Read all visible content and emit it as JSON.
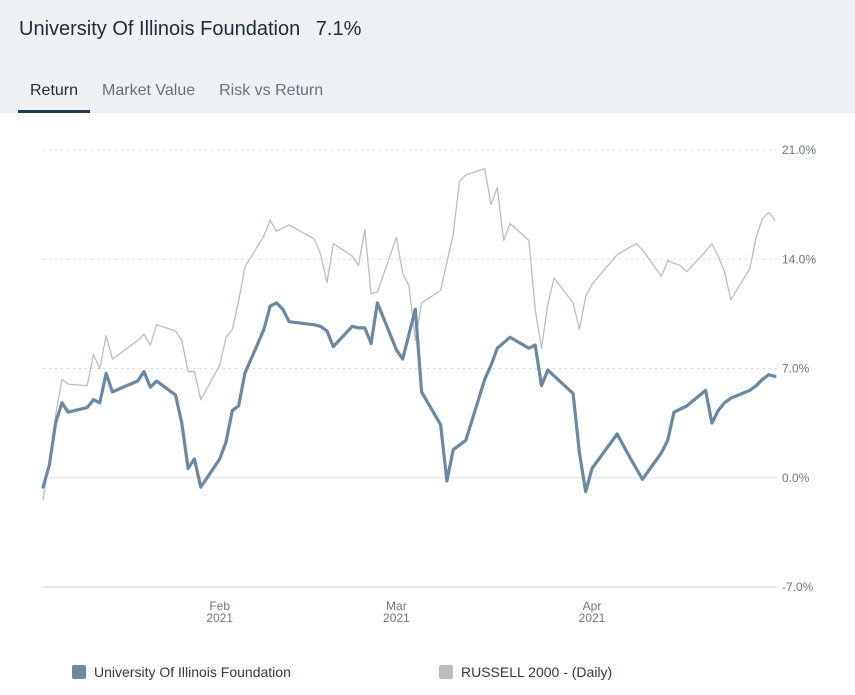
{
  "header": {
    "title": "University Of Illinois Foundation",
    "value": "7.1%"
  },
  "tabs": [
    {
      "label": "Return",
      "active": true
    },
    {
      "label": "Market Value",
      "active": false
    },
    {
      "label": "Risk vs Return",
      "active": false
    }
  ],
  "colors": {
    "fund": "#6c87a0",
    "benchmark": "#b9bec3",
    "grid": "#d3d7db",
    "header_bg": "#eef1f4"
  },
  "legend": [
    {
      "label": "University Of Illinois Foundation",
      "color": "#6c87a0"
    },
    {
      "label": "RUSSELL 2000 - (Daily)",
      "color": "#b9bec3"
    }
  ],
  "chart_data": {
    "type": "line",
    "ylim": [
      -7.0,
      21.0
    ],
    "y_ticks": [
      "21.0%",
      "14.0%",
      "7.0%",
      "0.0%",
      "-7.0%"
    ],
    "y_tick_values": [
      21.0,
      14.0,
      7.0,
      0.0,
      -7.0
    ],
    "x_range": [
      "2021-01-04",
      "2021-04-30"
    ],
    "x_ticks": [
      {
        "date": "2021-02-01",
        "month": "Feb",
        "year": "2021"
      },
      {
        "date": "2021-03-01",
        "month": "Mar",
        "year": "2021"
      },
      {
        "date": "2021-04-01",
        "month": "Apr",
        "year": "2021"
      }
    ],
    "grid": "horizontal dashed",
    "legend_position": "bottom",
    "series": [
      {
        "name": "University Of Illinois Foundation",
        "values": [
          [
            "2021-01-04",
            -0.6
          ],
          [
            "2021-01-05",
            0.8
          ],
          [
            "2021-01-06",
            3.5
          ],
          [
            "2021-01-07",
            4.8
          ],
          [
            "2021-01-08",
            4.2
          ],
          [
            "2021-01-11",
            4.5
          ],
          [
            "2021-01-12",
            5.0
          ],
          [
            "2021-01-13",
            4.8
          ],
          [
            "2021-01-14",
            6.7
          ],
          [
            "2021-01-15",
            5.5
          ],
          [
            "2021-01-19",
            6.2
          ],
          [
            "2021-01-20",
            6.8
          ],
          [
            "2021-01-21",
            5.8
          ],
          [
            "2021-01-22",
            6.2
          ],
          [
            "2021-01-25",
            5.3
          ],
          [
            "2021-01-26",
            3.5
          ],
          [
            "2021-01-27",
            0.6
          ],
          [
            "2021-01-28",
            1.2
          ],
          [
            "2021-01-29",
            -0.6
          ],
          [
            "2021-02-01",
            1.2
          ],
          [
            "2021-02-02",
            2.3
          ],
          [
            "2021-02-03",
            4.3
          ],
          [
            "2021-02-04",
            4.6
          ],
          [
            "2021-02-05",
            6.7
          ],
          [
            "2021-02-08",
            9.5
          ],
          [
            "2021-02-09",
            11.0
          ],
          [
            "2021-02-10",
            11.2
          ],
          [
            "2021-02-11",
            10.8
          ],
          [
            "2021-02-12",
            10.0
          ],
          [
            "2021-02-16",
            9.8
          ],
          [
            "2021-02-17",
            9.7
          ],
          [
            "2021-02-18",
            9.4
          ],
          [
            "2021-02-19",
            8.4
          ],
          [
            "2021-02-22",
            9.7
          ],
          [
            "2021-02-23",
            9.6
          ],
          [
            "2021-02-24",
            9.6
          ],
          [
            "2021-02-25",
            8.6
          ],
          [
            "2021-02-26",
            11.2
          ],
          [
            "2021-03-01",
            8.2
          ],
          [
            "2021-03-02",
            7.6
          ],
          [
            "2021-03-04",
            10.8
          ],
          [
            "2021-03-05",
            5.5
          ],
          [
            "2021-03-08",
            3.4
          ],
          [
            "2021-03-09",
            -0.2
          ],
          [
            "2021-03-10",
            1.8
          ],
          [
            "2021-03-12",
            2.4
          ],
          [
            "2021-03-15",
            6.3
          ],
          [
            "2021-03-16",
            7.2
          ],
          [
            "2021-03-17",
            8.3
          ],
          [
            "2021-03-19",
            9.0
          ],
          [
            "2021-03-22",
            8.3
          ],
          [
            "2021-03-23",
            8.5
          ],
          [
            "2021-03-24",
            5.9
          ],
          [
            "2021-03-25",
            6.9
          ],
          [
            "2021-03-29",
            5.4
          ],
          [
            "2021-03-30",
            1.6
          ],
          [
            "2021-03-31",
            -0.9
          ],
          [
            "2021-04-01",
            0.6
          ],
          [
            "2021-04-05",
            2.8
          ],
          [
            "2021-04-07",
            1.3
          ],
          [
            "2021-04-09",
            -0.1
          ],
          [
            "2021-04-12",
            1.6
          ],
          [
            "2021-04-13",
            2.4
          ],
          [
            "2021-04-14",
            4.2
          ],
          [
            "2021-04-16",
            4.6
          ],
          [
            "2021-04-19",
            5.6
          ],
          [
            "2021-04-20",
            3.5
          ],
          [
            "2021-04-21",
            4.3
          ],
          [
            "2021-04-22",
            4.8
          ],
          [
            "2021-04-23",
            5.1
          ],
          [
            "2021-04-26",
            5.6
          ],
          [
            "2021-04-27",
            5.9
          ],
          [
            "2021-04-28",
            6.3
          ],
          [
            "2021-04-29",
            6.6
          ],
          [
            "2021-04-30",
            6.5
          ]
        ]
      },
      {
        "name": "RUSSELL 2000 - (Daily)",
        "values": [
          [
            "2021-01-04",
            -1.4
          ],
          [
            "2021-01-05",
            1.0
          ],
          [
            "2021-01-06",
            4.0
          ],
          [
            "2021-01-07",
            6.3
          ],
          [
            "2021-01-08",
            6.0
          ],
          [
            "2021-01-11",
            5.9
          ],
          [
            "2021-01-12",
            7.9
          ],
          [
            "2021-01-13",
            7.0
          ],
          [
            "2021-01-14",
            9.1
          ],
          [
            "2021-01-15",
            7.6
          ],
          [
            "2021-01-19",
            8.8
          ],
          [
            "2021-01-20",
            9.2
          ],
          [
            "2021-01-21",
            8.5
          ],
          [
            "2021-01-22",
            9.8
          ],
          [
            "2021-01-25",
            9.4
          ],
          [
            "2021-01-26",
            8.8
          ],
          [
            "2021-01-27",
            6.8
          ],
          [
            "2021-01-28",
            6.8
          ],
          [
            "2021-01-29",
            5.0
          ],
          [
            "2021-02-01",
            7.2
          ],
          [
            "2021-02-02",
            9.0
          ],
          [
            "2021-02-03",
            9.5
          ],
          [
            "2021-02-04",
            11.3
          ],
          [
            "2021-02-05",
            13.5
          ],
          [
            "2021-02-08",
            15.5
          ],
          [
            "2021-02-09",
            16.5
          ],
          [
            "2021-02-10",
            15.8
          ],
          [
            "2021-02-11",
            16.0
          ],
          [
            "2021-02-12",
            16.2
          ],
          [
            "2021-02-16",
            15.3
          ],
          [
            "2021-02-17",
            14.3
          ],
          [
            "2021-02-18",
            12.5
          ],
          [
            "2021-02-19",
            15.0
          ],
          [
            "2021-02-22",
            14.2
          ],
          [
            "2021-02-23",
            13.6
          ],
          [
            "2021-02-24",
            15.9
          ],
          [
            "2021-02-25",
            11.8
          ],
          [
            "2021-02-26",
            11.9
          ],
          [
            "2021-03-01",
            15.4
          ],
          [
            "2021-03-02",
            13.1
          ],
          [
            "2021-03-03",
            12.3
          ],
          [
            "2021-03-04",
            8.8
          ],
          [
            "2021-03-05",
            11.2
          ],
          [
            "2021-03-08",
            12.0
          ],
          [
            "2021-03-10",
            15.6
          ],
          [
            "2021-03-11",
            19.0
          ],
          [
            "2021-03-12",
            19.4
          ],
          [
            "2021-03-15",
            19.8
          ],
          [
            "2021-03-16",
            17.5
          ],
          [
            "2021-03-17",
            18.6
          ],
          [
            "2021-03-18",
            15.2
          ],
          [
            "2021-03-19",
            16.3
          ],
          [
            "2021-03-22",
            15.2
          ],
          [
            "2021-03-23",
            10.8
          ],
          [
            "2021-03-24",
            8.3
          ],
          [
            "2021-03-25",
            11.1
          ],
          [
            "2021-03-26",
            12.8
          ],
          [
            "2021-03-29",
            11.2
          ],
          [
            "2021-03-30",
            9.5
          ],
          [
            "2021-03-31",
            11.6
          ],
          [
            "2021-04-01",
            12.4
          ],
          [
            "2021-04-05",
            14.3
          ],
          [
            "2021-04-08",
            15.0
          ],
          [
            "2021-04-09",
            14.6
          ],
          [
            "2021-04-12",
            12.9
          ],
          [
            "2021-04-13",
            13.9
          ],
          [
            "2021-04-15",
            13.6
          ],
          [
            "2021-04-16",
            13.2
          ],
          [
            "2021-04-19",
            14.5
          ],
          [
            "2021-04-20",
            15.0
          ],
          [
            "2021-04-21",
            14.2
          ],
          [
            "2021-04-22",
            13.2
          ],
          [
            "2021-04-23",
            11.4
          ],
          [
            "2021-04-26",
            13.4
          ],
          [
            "2021-04-27",
            15.4
          ],
          [
            "2021-04-28",
            16.6
          ],
          [
            "2021-04-29",
            17.0
          ],
          [
            "2021-04-30",
            16.5
          ]
        ]
      }
    ]
  }
}
